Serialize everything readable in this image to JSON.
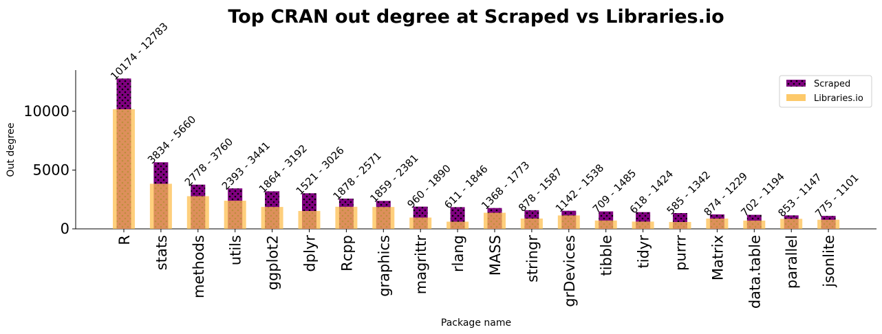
{
  "chart_data": {
    "type": "bar",
    "title": "Top CRAN out degree at Scraped vs Libraries.io",
    "xlabel": "Package name",
    "ylabel": "Out degree",
    "ylim": [
      0,
      13500
    ],
    "yticks": [
      0,
      5000,
      10000
    ],
    "categories": [
      "R",
      "stats",
      "methods",
      "utils",
      "ggplot2",
      "dplyr",
      "Rcpp",
      "graphics",
      "magrittr",
      "rlang",
      "MASS",
      "stringr",
      "grDevices",
      "tibble",
      "tidyr",
      "purrr",
      "Matrix",
      "data.table",
      "parallel",
      "jsonlite"
    ],
    "series": [
      {
        "name": "Scraped",
        "color": "#800080",
        "hatch": "dots",
        "values": [
          12783,
          5660,
          3760,
          3441,
          3192,
          3026,
          2571,
          2381,
          1890,
          1846,
          1773,
          1587,
          1538,
          1485,
          1424,
          1342,
          1229,
          1194,
          1147,
          1101
        ]
      },
      {
        "name": "Libraries.io",
        "color": "#FDBF50",
        "values": [
          10174,
          3834,
          2778,
          2393,
          1864,
          1521,
          1878,
          1859,
          960,
          611,
          1368,
          878,
          1142,
          709,
          618,
          585,
          874,
          702,
          853,
          775
        ]
      }
    ],
    "annotations": [
      "10174 - 12783",
      "3834 - 5660",
      "2778 - 3760",
      "2393 - 3441",
      "1864 - 3192",
      "1521 - 3026",
      "1878 - 2571",
      "1859 - 2381",
      "960 - 1890",
      "611 - 1846",
      "1368 - 1773",
      "878 - 1587",
      "1142 - 1538",
      "709 - 1485",
      "618 - 1424",
      "585 - 1342",
      "874 - 1229",
      "702 - 1194",
      "853 - 1147",
      "775 - 1101"
    ],
    "legend": {
      "placement": "top-right"
    },
    "grid": false
  }
}
